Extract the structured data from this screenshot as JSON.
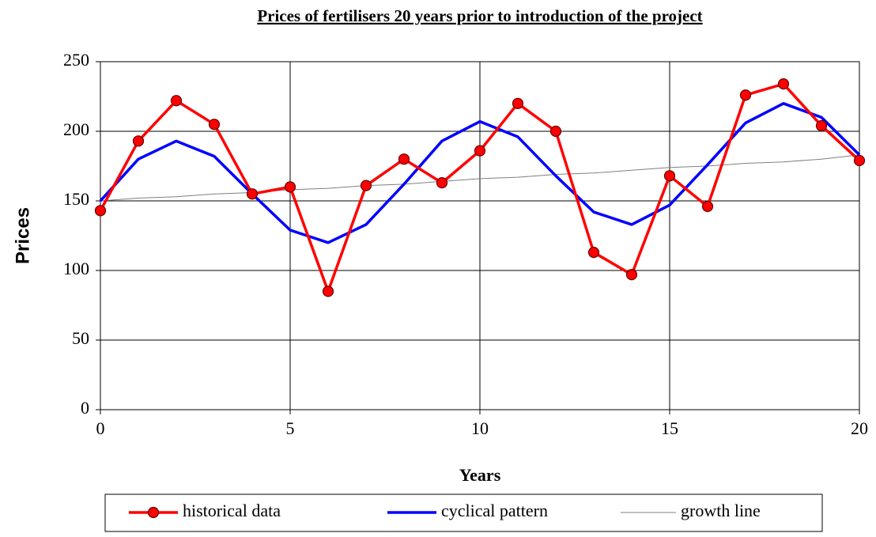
{
  "chart_data": {
    "type": "line",
    "title": "Prices of fertilisers 20 years prior to introduction of the project",
    "x_label": "Years",
    "y_label": "Prices",
    "x": [
      0,
      1,
      2,
      3,
      4,
      5,
      6,
      7,
      8,
      9,
      10,
      11,
      12,
      13,
      14,
      15,
      16,
      17,
      18,
      19,
      20
    ],
    "series": [
      {
        "name": "historical data",
        "color": "#ff0000",
        "marker": true,
        "values": [
          143,
          193,
          222,
          205,
          155,
          160,
          85,
          161,
          180,
          163,
          186,
          220,
          200,
          113,
          97,
          168,
          146,
          226,
          234,
          204,
          179
        ]
      },
      {
        "name": "cyclical pattern",
        "color": "#0000ff",
        "marker": false,
        "values": [
          150,
          180,
          193,
          182,
          155,
          129,
          120,
          133,
          162,
          193,
          207,
          196,
          168,
          142,
          133,
          147,
          176,
          206,
          220,
          210,
          183
        ]
      },
      {
        "name": "growth line",
        "color": "#808080",
        "marker": false,
        "values": [
          150,
          152,
          153,
          155,
          156,
          158,
          159,
          161,
          162,
          164,
          166,
          167,
          169,
          170,
          172,
          174,
          175,
          177,
          178,
          180,
          183
        ]
      }
    ],
    "xlim": [
      0,
      20
    ],
    "xticks": [
      0,
      5,
      10,
      15,
      20
    ],
    "ylim": [
      0,
      250
    ],
    "yticks": [
      0,
      50,
      100,
      150,
      200,
      250
    ],
    "grid": true,
    "legend": "bottom"
  }
}
